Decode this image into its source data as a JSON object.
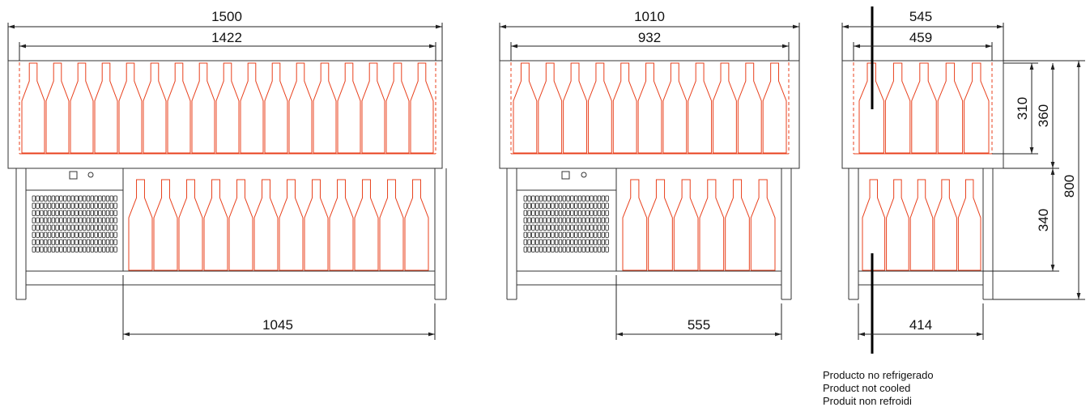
{
  "views": {
    "large": {
      "overall_width": "1500",
      "inner_width": "1422",
      "storage_width": "1045"
    },
    "medium": {
      "overall_width": "1010",
      "inner_width": "932",
      "storage_width": "555"
    },
    "side": {
      "overall_depth": "545",
      "inner_depth": "459",
      "storage_depth": "414",
      "display_height": "310",
      "display_outer_height": "360",
      "storage_height": "340",
      "total_height": "800"
    }
  },
  "legend": {
    "line_es": "Producto no refrigerado",
    "line_en": "Product not cooled",
    "line_fr": "Produit non refroidi"
  },
  "colors": {
    "line": "#333333",
    "bottle": "#e8401c"
  }
}
